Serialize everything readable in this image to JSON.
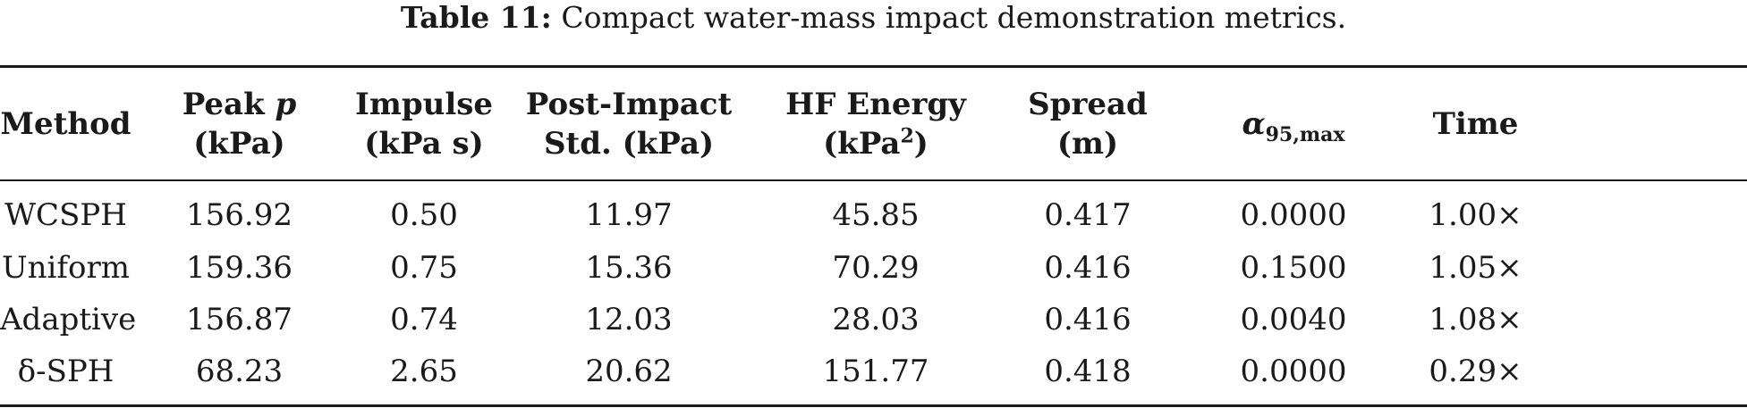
{
  "caption": {
    "label": "Table 11:",
    "text": "Compact water-mass impact demonstration metrics."
  },
  "table": {
    "headers": [
      {
        "line1": "Method",
        "line2": ""
      },
      {
        "line1": "Peak p",
        "line2": "(kPa)"
      },
      {
        "line1": "Impulse",
        "line2": "(kPa s)"
      },
      {
        "line1": "Post-Impact",
        "line2": "Std. (kPa)"
      },
      {
        "line1": "HF Energy",
        "line2": "(kPa2)"
      },
      {
        "line1": "Spread",
        "line2": "(m)"
      },
      {
        "line1": "α95,max",
        "line2": ""
      },
      {
        "line1": "Time",
        "line2": ""
      }
    ],
    "header_parts": {
      "peak_prefix": "Peak ",
      "peak_symbol": "p",
      "hf_unit_open": "(kPa",
      "hf_unit_exp": "2",
      "hf_unit_close": ")",
      "alpha_symbol": "α",
      "alpha_sub": "95,max"
    },
    "rows": [
      [
        "WCSPH",
        "156.92",
        "0.50",
        "11.97",
        "45.85",
        "0.417",
        "0.0000",
        "1.00×"
      ],
      [
        "Uniform",
        "159.36",
        "0.75",
        "15.36",
        "70.29",
        "0.416",
        "0.1500",
        "1.05×"
      ],
      [
        "Adaptive",
        "156.87",
        "0.74",
        "12.03",
        "28.03",
        "0.416",
        "0.0040",
        "1.08×"
      ],
      [
        "δ-SPH",
        "68.23",
        "2.65",
        "20.62",
        "151.77",
        "0.418",
        "0.0000",
        "0.29×"
      ]
    ]
  }
}
